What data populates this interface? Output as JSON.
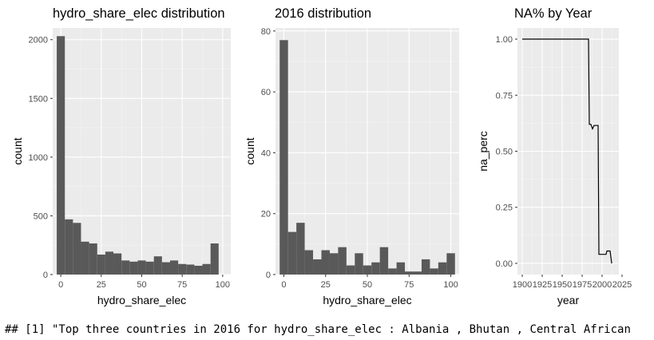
{
  "chart_data": [
    {
      "type": "bar",
      "title": "hydro_share_elec  distribution",
      "xlabel": "hydro_share_elec",
      "ylabel": "count",
      "bins_x": [
        0,
        5,
        10,
        15,
        20,
        25,
        30,
        35,
        40,
        45,
        50,
        55,
        60,
        65,
        70,
        75,
        80,
        85,
        90,
        95,
        100
      ],
      "values": [
        2030,
        470,
        440,
        280,
        265,
        170,
        195,
        180,
        120,
        110,
        120,
        110,
        155,
        105,
        120,
        90,
        85,
        75,
        90,
        265
      ],
      "xlim": [
        -5,
        105
      ],
      "ylim": [
        0,
        2100
      ],
      "x_ticks": [
        0,
        25,
        50,
        75,
        100
      ],
      "x_tick_labels": [
        "0",
        "25",
        "50",
        "75",
        "100"
      ],
      "y_ticks": [
        0,
        500,
        1000,
        1500,
        2000
      ],
      "y_tick_labels": [
        "0",
        "500",
        "1000",
        "1500",
        "2000"
      ]
    },
    {
      "type": "bar",
      "title": "2016 distribution",
      "xlabel": "hydro_share_elec",
      "ylabel": "count",
      "bins_x": [
        0,
        5,
        10,
        15,
        20,
        25,
        30,
        35,
        40,
        45,
        50,
        55,
        60,
        65,
        70,
        75,
        80,
        85,
        90,
        95,
        100
      ],
      "values": [
        77,
        14,
        17,
        8,
        5,
        8,
        7,
        9,
        3,
        7,
        3,
        4,
        9,
        2,
        4,
        1,
        1,
        5,
        2,
        4,
        7
      ],
      "xlim": [
        -5,
        105
      ],
      "ylim": [
        0,
        81
      ],
      "x_ticks": [
        0,
        25,
        50,
        75,
        100
      ],
      "x_tick_labels": [
        "0",
        "25",
        "50",
        "75",
        "100"
      ],
      "y_ticks": [
        0,
        20,
        40,
        60,
        80
      ],
      "y_tick_labels": [
        "0",
        "20",
        "40",
        "60",
        "80"
      ]
    },
    {
      "type": "line",
      "title": "NA% by Year",
      "xlabel": "year",
      "ylabel": "na_perc",
      "x": [
        1900,
        1983,
        1984,
        1986,
        1988,
        1990,
        1995,
        1996,
        1997,
        2000,
        2005,
        2006,
        2010,
        2012
      ],
      "y": [
        1.0,
        1.0,
        0.62,
        0.62,
        0.6,
        0.615,
        0.615,
        0.04,
        0.04,
        0.04,
        0.04,
        0.055,
        0.055,
        0.0
      ],
      "xlim": [
        1894,
        2021
      ],
      "ylim": [
        -0.05,
        1.05
      ],
      "x_ticks": [
        1900,
        1925,
        1950,
        1975,
        2000,
        2025
      ],
      "x_tick_labels": [
        "1900",
        "1925",
        "1950",
        "1975",
        "2000",
        "2025"
      ],
      "y_ticks": [
        0,
        0.25,
        0.5,
        0.75,
        1.0
      ],
      "y_tick_labels": [
        "0.00",
        "0.25",
        "0.50",
        "0.75",
        "1.00"
      ]
    }
  ],
  "console_output": "## [1] \"Top three countries in 2016 for hydro_share_elec : Albania , Bhutan , Central African",
  "colors": {
    "panel_bg": "#EBEBEB",
    "grid_major": "#FFFFFF",
    "grid_minor": "#F5F5F5",
    "bar_fill": "#595959",
    "line": "#000000",
    "text": "#000000",
    "tick_text": "#4D4D4D"
  }
}
